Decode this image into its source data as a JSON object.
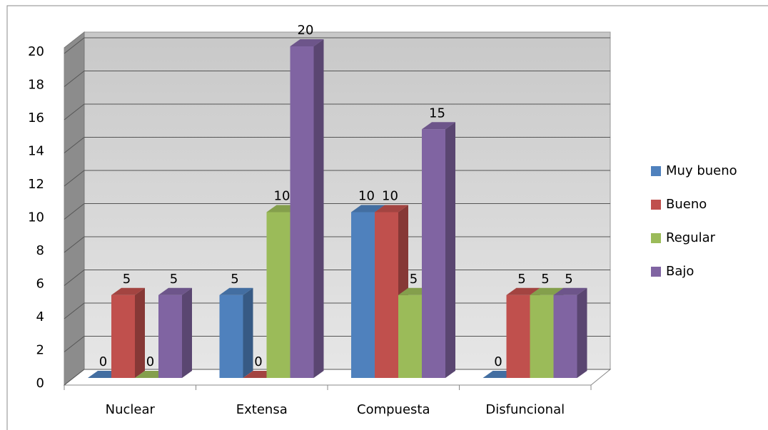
{
  "chart_data": {
    "type": "bar3d",
    "categories": [
      "Nuclear",
      "Extensa",
      "Compuesta",
      "Disfuncional"
    ],
    "series": [
      {
        "name": "Muy bueno",
        "color": "#4f81bd",
        "values": [
          0,
          5,
          10,
          0
        ]
      },
      {
        "name": "Bueno",
        "color": "#c0504d",
        "values": [
          5,
          0,
          10,
          5
        ]
      },
      {
        "name": "Regular",
        "color": "#9bbb59",
        "values": [
          0,
          10,
          5,
          5
        ]
      },
      {
        "name": "Bajo",
        "color": "#8064a2",
        "values": [
          5,
          20,
          15,
          5
        ]
      }
    ],
    "ylim": [
      0,
      20
    ],
    "yticks": [
      0,
      2,
      4,
      6,
      8,
      10,
      12,
      14,
      16,
      18,
      20
    ],
    "grid": true,
    "legend": "right",
    "data_labels": true
  }
}
